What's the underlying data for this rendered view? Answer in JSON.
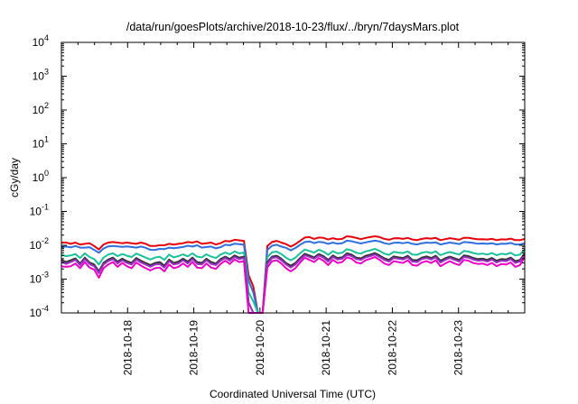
{
  "title": "/data/run/goesPlots/archive/2018-10-23/flux/../bryn/7daysMars.plot",
  "chart_data": {
    "type": "line",
    "title": "/data/run/goesPlots/archive/2018-10-23/flux/../bryn/7daysMars.plot",
    "xlabel": "Coordinated Universal Time (UTC)",
    "ylabel": "cGy/day",
    "yscale": "log",
    "ylim": [
      0.0001,
      10000
    ],
    "xlim": [
      "2018-10-17T00:00",
      "2018-10-24T00:00"
    ],
    "y_ticks": [
      {
        "base": "10",
        "exp": "-4",
        "value": 0.0001
      },
      {
        "base": "10",
        "exp": "-3",
        "value": 0.001
      },
      {
        "base": "10",
        "exp": "-2",
        "value": 0.01
      },
      {
        "base": "10",
        "exp": "-1",
        "value": 0.1
      },
      {
        "base": "10",
        "exp": "0",
        "value": 1
      },
      {
        "base": "10",
        "exp": "1",
        "value": 10
      },
      {
        "base": "10",
        "exp": "2",
        "value": 100
      },
      {
        "base": "10",
        "exp": "3",
        "value": 1000
      },
      {
        "base": "10",
        "exp": "4",
        "value": 10000
      }
    ],
    "x_ticks": [
      "2018-10-18",
      "2018-10-19",
      "2018-10-20",
      "2018-10-21",
      "2018-10-22",
      "2018-10-23"
    ],
    "grid": false,
    "series": [
      {
        "color": "#e8000b",
        "values": [
          0.012,
          0.012,
          0.011,
          0.012,
          0.0105,
          0.011,
          0.0115,
          0.0095,
          0.0075,
          0.0105,
          0.012,
          0.0125,
          0.012,
          0.0115,
          0.012,
          0.0115,
          0.011,
          0.012,
          0.011,
          0.0095,
          0.0095,
          0.01,
          0.01,
          0.011,
          0.0105,
          0.011,
          0.0115,
          0.0125,
          0.012,
          0.013,
          0.011,
          0.0115,
          0.012,
          0.0105,
          0.0115,
          0.0135,
          0.013,
          0.0145,
          0.014,
          0.0135,
          0.0013,
          0.0006,
          0.0001,
          0.0001,
          0.0095,
          0.0125,
          0.0135,
          0.012,
          0.0108,
          0.0092,
          0.0108,
          0.0135,
          0.017,
          0.0175,
          0.0155,
          0.017,
          0.0165,
          0.0148,
          0.0162,
          0.015,
          0.0155,
          0.0185,
          0.0178,
          0.0165,
          0.0152,
          0.0165,
          0.0175,
          0.0185,
          0.0175,
          0.0155,
          0.0145,
          0.016,
          0.0162,
          0.0155,
          0.0165,
          0.0148,
          0.0142,
          0.0155,
          0.0162,
          0.0158,
          0.0165,
          0.0142,
          0.0152,
          0.0162,
          0.0155,
          0.0145,
          0.0168,
          0.0165,
          0.0158,
          0.015,
          0.0152,
          0.0148,
          0.0155,
          0.0142,
          0.015,
          0.0148,
          0.0158,
          0.0142,
          0.0142,
          0.0155
        ]
      },
      {
        "color": "#2f6fe0",
        "values": [
          0.0088,
          0.0092,
          0.0087,
          0.0095,
          0.0085,
          0.0085,
          0.0088,
          0.0073,
          0.006,
          0.008,
          0.0093,
          0.0095,
          0.0093,
          0.009,
          0.0093,
          0.0089,
          0.0085,
          0.0092,
          0.0084,
          0.0073,
          0.0073,
          0.0078,
          0.0077,
          0.0085,
          0.0082,
          0.0085,
          0.0089,
          0.0097,
          0.0092,
          0.01,
          0.0085,
          0.0089,
          0.0092,
          0.0081,
          0.0088,
          0.0104,
          0.01,
          0.0112,
          0.0108,
          0.0104,
          0.0009,
          0.0004,
          0.0001,
          0.0001,
          0.0073,
          0.0097,
          0.0104,
          0.0092,
          0.0084,
          0.0071,
          0.0083,
          0.0104,
          0.0125,
          0.013,
          0.0116,
          0.0126,
          0.0122,
          0.011,
          0.012,
          0.0111,
          0.0115,
          0.0137,
          0.0132,
          0.0122,
          0.0113,
          0.0122,
          0.013,
          0.0137,
          0.013,
          0.0115,
          0.0108,
          0.0118,
          0.012,
          0.0115,
          0.0122,
          0.011,
          0.0106,
          0.0115,
          0.012,
          0.0117,
          0.0122,
          0.0106,
          0.0113,
          0.012,
          0.0115,
          0.0108,
          0.0125,
          0.0122,
          0.0117,
          0.0111,
          0.0113,
          0.011,
          0.0115,
          0.0106,
          0.0111,
          0.011,
          0.0117,
          0.0106,
          0.0106,
          0.0115
        ]
      },
      {
        "color": "#19c29a",
        "values": [
          0.0052,
          0.0048,
          0.005,
          0.0055,
          0.0042,
          0.0058,
          0.0045,
          0.0039,
          0.0027,
          0.0043,
          0.0053,
          0.0058,
          0.0048,
          0.0055,
          0.0049,
          0.0045,
          0.0057,
          0.005,
          0.0043,
          0.0038,
          0.0043,
          0.0046,
          0.0037,
          0.0053,
          0.0044,
          0.0048,
          0.0054,
          0.0047,
          0.0058,
          0.0046,
          0.0044,
          0.0054,
          0.0046,
          0.0042,
          0.0053,
          0.0061,
          0.0054,
          0.0066,
          0.0058,
          0.0061,
          0.0004,
          0.00022,
          0.0001,
          0.0001,
          0.0045,
          0.0062,
          0.0065,
          0.0055,
          0.0043,
          0.0036,
          0.0043,
          0.0058,
          0.0075,
          0.0068,
          0.0061,
          0.0074,
          0.0065,
          0.0052,
          0.0067,
          0.0058,
          0.006,
          0.0077,
          0.0071,
          0.006,
          0.0057,
          0.0066,
          0.0071,
          0.0078,
          0.0068,
          0.0057,
          0.0052,
          0.0064,
          0.0061,
          0.0059,
          0.0066,
          0.0053,
          0.0052,
          0.006,
          0.0064,
          0.0059,
          0.0066,
          0.0051,
          0.0058,
          0.0063,
          0.0058,
          0.0053,
          0.0068,
          0.0065,
          0.0059,
          0.0055,
          0.0057,
          0.0053,
          0.0059,
          0.0051,
          0.0056,
          0.0054,
          0.006,
          0.005,
          0.0053,
          0.0075
        ]
      },
      {
        "color": "#333333",
        "values": [
          0.0037,
          0.0032,
          0.0036,
          0.0041,
          0.0029,
          0.0043,
          0.0031,
          0.0027,
          0.0017,
          0.003,
          0.0038,
          0.0043,
          0.0033,
          0.004,
          0.0034,
          0.003,
          0.0042,
          0.0035,
          0.003,
          0.0026,
          0.003,
          0.0032,
          0.0025,
          0.0038,
          0.003,
          0.0033,
          0.004,
          0.0033,
          0.0043,
          0.0032,
          0.003,
          0.004,
          0.0032,
          0.0029,
          0.0039,
          0.0046,
          0.0039,
          0.005,
          0.0043,
          0.0046,
          0.0002,
          0.0001,
          0.0001,
          0.0001,
          0.0032,
          0.0046,
          0.0049,
          0.004,
          0.003,
          0.0025,
          0.003,
          0.0042,
          0.0056,
          0.005,
          0.0044,
          0.0055,
          0.0048,
          0.0037,
          0.005,
          0.0042,
          0.0044,
          0.0058,
          0.0053,
          0.0043,
          0.0041,
          0.0049,
          0.0053,
          0.0059,
          0.005,
          0.0041,
          0.0037,
          0.0047,
          0.0044,
          0.0042,
          0.0049,
          0.0037,
          0.0036,
          0.0043,
          0.0047,
          0.0042,
          0.0049,
          0.0035,
          0.0041,
          0.0046,
          0.0041,
          0.0037,
          0.005,
          0.0048,
          0.0042,
          0.0039,
          0.004,
          0.0037,
          0.0042,
          0.0035,
          0.0039,
          0.0038,
          0.0043,
          0.0034,
          0.0037,
          0.0058
        ]
      },
      {
        "color": "#9b2fc6",
        "values": [
          0.0033,
          0.0028,
          0.0032,
          0.0037,
          0.0026,
          0.0039,
          0.0028,
          0.0024,
          0.0015,
          0.0027,
          0.0034,
          0.0039,
          0.0029,
          0.0036,
          0.003,
          0.0027,
          0.0038,
          0.0031,
          0.0027,
          0.0023,
          0.0027,
          0.0028,
          0.0022,
          0.0034,
          0.0027,
          0.0029,
          0.0036,
          0.0029,
          0.0039,
          0.0028,
          0.0027,
          0.0036,
          0.0028,
          0.0026,
          0.0035,
          0.0042,
          0.0035,
          0.0045,
          0.0039,
          0.0042,
          0.0002,
          0.0001,
          0.0001,
          0.0001,
          0.0028,
          0.0042,
          0.0044,
          0.0036,
          0.0027,
          0.0022,
          0.0027,
          0.0038,
          0.0051,
          0.0045,
          0.004,
          0.005,
          0.0043,
          0.0033,
          0.0045,
          0.0038,
          0.004,
          0.0052,
          0.0048,
          0.0039,
          0.0037,
          0.0044,
          0.0048,
          0.0053,
          0.0045,
          0.0037,
          0.0033,
          0.0042,
          0.004,
          0.0038,
          0.0044,
          0.0033,
          0.0032,
          0.0039,
          0.0042,
          0.0038,
          0.0044,
          0.0031,
          0.0037,
          0.0042,
          0.0037,
          0.0033,
          0.0045,
          0.0043,
          0.0038,
          0.0035,
          0.0036,
          0.0033,
          0.0038,
          0.0031,
          0.0035,
          0.0034,
          0.0039,
          0.003,
          0.0033,
          0.0053
        ]
      },
      {
        "color": "#f000c8",
        "values": [
          0.0024,
          0.0023,
          0.0024,
          0.0029,
          0.0021,
          0.0032,
          0.0022,
          0.0019,
          0.0011,
          0.0021,
          0.0027,
          0.0032,
          0.0023,
          0.003,
          0.0024,
          0.0021,
          0.0031,
          0.0025,
          0.0021,
          0.0018,
          0.0021,
          0.0022,
          0.0017,
          0.0027,
          0.0021,
          0.0023,
          0.0029,
          0.0023,
          0.0032,
          0.0022,
          0.0021,
          0.0029,
          0.0022,
          0.002,
          0.0028,
          0.0035,
          0.0028,
          0.0038,
          0.0032,
          0.0034,
          0.0001,
          0.0001,
          0.0001,
          0.0001,
          0.0022,
          0.0034,
          0.0036,
          0.0029,
          0.0021,
          0.0017,
          0.0021,
          0.0031,
          0.0043,
          0.0037,
          0.0032,
          0.0042,
          0.0035,
          0.0026,
          0.0037,
          0.003,
          0.0032,
          0.0044,
          0.004,
          0.0031,
          0.0029,
          0.0036,
          0.004,
          0.0045,
          0.0037,
          0.0029,
          0.0026,
          0.0034,
          0.0032,
          0.003,
          0.0036,
          0.0026,
          0.0025,
          0.0031,
          0.0034,
          0.003,
          0.0036,
          0.0024,
          0.0029,
          0.0034,
          0.0029,
          0.0026,
          0.0037,
          0.0035,
          0.003,
          0.0028,
          0.0029,
          0.0026,
          0.003,
          0.0024,
          0.0028,
          0.0027,
          0.0031,
          0.0023,
          0.0026,
          0.0045
        ]
      }
    ]
  }
}
